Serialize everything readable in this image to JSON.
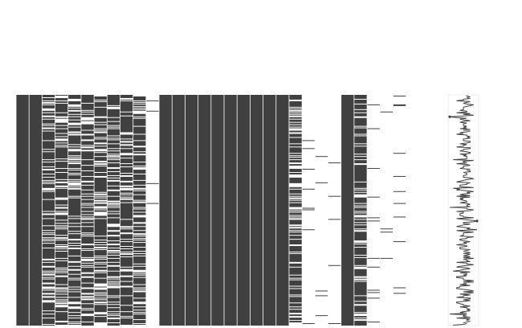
{
  "chart_data": {
    "type": "heatmap",
    "subtype": "missing-values-matrix",
    "title": "",
    "xlabel": "",
    "ylabel": "",
    "present_color": "#404040",
    "missing_color": "#ffffff",
    "rows": 290,
    "columns": [
      {
        "label": "",
        "completeness": 1.0
      },
      {
        "label": "",
        "completeness": 1.0
      },
      {
        "label": "",
        "completeness": 0.72
      },
      {
        "label": "",
        "completeness": 0.72
      },
      {
        "label": "",
        "completeness": 0.72
      },
      {
        "label": "",
        "completeness": 0.72
      },
      {
        "label": "",
        "completeness": 0.72
      },
      {
        "label": "",
        "completeness": 0.72
      },
      {
        "label": "",
        "completeness": 0.76
      },
      {
        "label": "",
        "completeness": 0.76
      },
      {
        "label": "",
        "completeness": 0.03
      },
      {
        "label": "",
        "completeness": 1.0
      },
      {
        "label": "",
        "completeness": 1.0
      },
      {
        "label": "",
        "completeness": 1.0
      },
      {
        "label": "",
        "completeness": 1.0
      },
      {
        "label": "",
        "completeness": 1.0
      },
      {
        "label": "",
        "completeness": 1.0
      },
      {
        "label": "",
        "completeness": 1.0
      },
      {
        "label": "",
        "completeness": 1.0
      },
      {
        "label": "",
        "completeness": 1.0
      },
      {
        "label": "",
        "completeness": 1.0
      },
      {
        "label": "",
        "completeness": 0.68
      },
      {
        "label": "",
        "completeness": 0.03
      },
      {
        "label": "",
        "completeness": 0.03
      },
      {
        "label": "",
        "completeness": 0.03
      },
      {
        "label": "",
        "completeness": 1.0
      },
      {
        "label": "",
        "completeness": 0.75
      },
      {
        "label": "",
        "completeness": 0.03
      },
      {
        "label": "",
        "completeness": 0.03
      },
      {
        "label": "",
        "completeness": 0.03
      },
      {
        "label": "",
        "completeness": 0.0
      },
      {
        "label": "",
        "completeness": 0.0
      }
    ],
    "sparkline": {
      "min_label": "",
      "max_label": ""
    }
  }
}
